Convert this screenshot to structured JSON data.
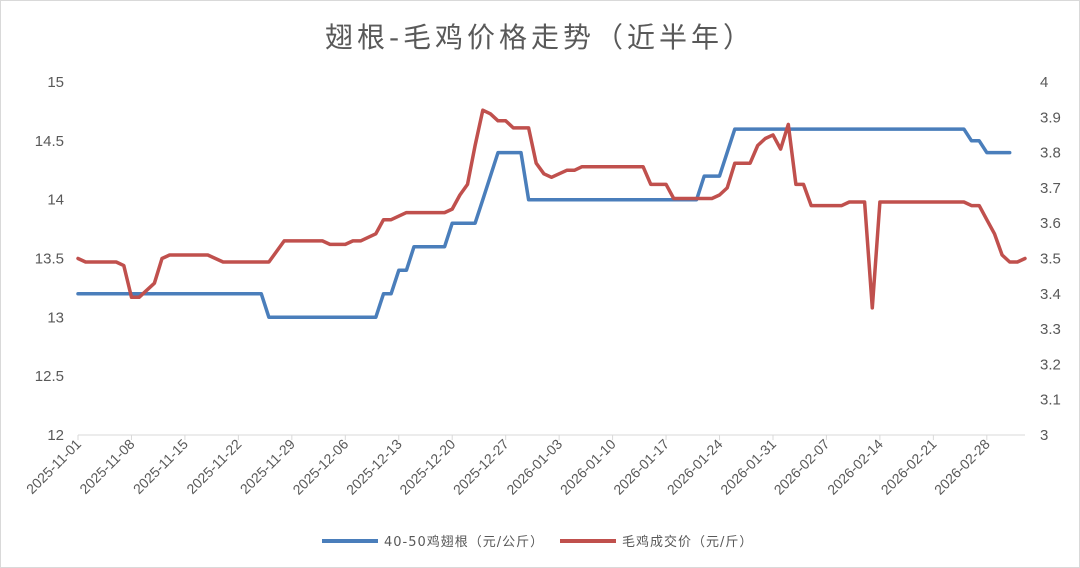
{
  "chart_data": {
    "type": "line",
    "title": "翅根-毛鸡价格走势（近半年）",
    "x_tick_labels": [
      "2025-11-01",
      "2025-11-08",
      "2025-11-15",
      "2025-11-22",
      "2025-11-29",
      "2025-12-06",
      "2025-12-13",
      "2025-12-20",
      "2025-12-27",
      "2026-01-03",
      "2026-01-10",
      "2026-01-17",
      "2026-01-24",
      "2026-01-31",
      "2026-02-07",
      "2026-02-14",
      "2026-02-21",
      "2026-02-28"
    ],
    "y_left": {
      "ylim": [
        12,
        15
      ],
      "ticks": [
        "12",
        "12.5",
        "13",
        "13.5",
        "14",
        "14.5",
        "15"
      ]
    },
    "y_right": {
      "ylim": [
        3,
        4
      ],
      "ticks": [
        "3",
        "3.1",
        "3.2",
        "3.3",
        "3.4",
        "3.5",
        "3.6",
        "3.7",
        "3.8",
        "3.9",
        "4"
      ]
    },
    "legend_position": "bottom",
    "grid": false,
    "series": [
      {
        "name": "40-50鸡翅根（元/公斤）",
        "axis": "left",
        "color": "#4a7ebb",
        "points": [
          [
            "2025-11-01",
            13.2
          ],
          [
            "2025-11-25",
            13.2
          ],
          [
            "2025-11-26",
            13.0
          ],
          [
            "2025-12-10",
            13.0
          ],
          [
            "2025-12-11",
            13.2
          ],
          [
            "2025-12-12",
            13.2
          ],
          [
            "2025-12-13",
            13.4
          ],
          [
            "2025-12-14",
            13.4
          ],
          [
            "2025-12-15",
            13.6
          ],
          [
            "2025-12-19",
            13.6
          ],
          [
            "2025-12-20",
            13.8
          ],
          [
            "2025-12-23",
            13.8
          ],
          [
            "2025-12-24",
            14.0
          ],
          [
            "2025-12-26",
            14.4
          ],
          [
            "2025-12-29",
            14.4
          ],
          [
            "2025-12-30",
            14.0
          ],
          [
            "2026-01-21",
            14.0
          ],
          [
            "2026-01-22",
            14.2
          ],
          [
            "2026-01-24",
            14.2
          ],
          [
            "2026-01-26",
            14.6
          ],
          [
            "2026-02-25",
            14.6
          ],
          [
            "2026-02-26",
            14.5
          ],
          [
            "2026-02-27",
            14.5
          ],
          [
            "2026-02-28",
            14.4
          ],
          [
            "2026-03-03",
            14.4
          ]
        ]
      },
      {
        "name": "毛鸡成交价（元/斤）",
        "axis": "right",
        "color": "#c0504d",
        "points": [
          [
            "2025-11-01",
            3.5
          ],
          [
            "2025-11-02",
            3.49
          ],
          [
            "2025-11-06",
            3.49
          ],
          [
            "2025-11-07",
            3.48
          ],
          [
            "2025-11-08",
            3.39
          ],
          [
            "2025-11-09",
            3.39
          ],
          [
            "2025-11-11",
            3.43
          ],
          [
            "2025-11-12",
            3.5
          ],
          [
            "2025-11-13",
            3.51
          ],
          [
            "2025-11-18",
            3.51
          ],
          [
            "2025-11-20",
            3.49
          ],
          [
            "2025-11-26",
            3.49
          ],
          [
            "2025-11-27",
            3.52
          ],
          [
            "2025-11-28",
            3.55
          ],
          [
            "2025-12-03",
            3.55
          ],
          [
            "2025-12-04",
            3.54
          ],
          [
            "2025-12-06",
            3.54
          ],
          [
            "2025-12-07",
            3.55
          ],
          [
            "2025-12-08",
            3.55
          ],
          [
            "2025-12-10",
            3.57
          ],
          [
            "2025-12-11",
            3.61
          ],
          [
            "2025-12-12",
            3.61
          ],
          [
            "2025-12-14",
            3.63
          ],
          [
            "2025-12-19",
            3.63
          ],
          [
            "2025-12-20",
            3.64
          ],
          [
            "2025-12-21",
            3.68
          ],
          [
            "2025-12-22",
            3.71
          ],
          [
            "2025-12-23",
            3.82
          ],
          [
            "2025-12-24",
            3.92
          ],
          [
            "2025-12-25",
            3.91
          ],
          [
            "2025-12-26",
            3.89
          ],
          [
            "2025-12-27",
            3.89
          ],
          [
            "2025-12-28",
            3.87
          ],
          [
            "2025-12-30",
            3.87
          ],
          [
            "2025-12-31",
            3.77
          ],
          [
            "2026-01-01",
            3.74
          ],
          [
            "2026-01-02",
            3.73
          ],
          [
            "2026-01-03",
            3.74
          ],
          [
            "2026-01-04",
            3.75
          ],
          [
            "2026-01-05",
            3.75
          ],
          [
            "2026-01-06",
            3.76
          ],
          [
            "2026-01-14",
            3.76
          ],
          [
            "2026-01-15",
            3.71
          ],
          [
            "2026-01-17",
            3.71
          ],
          [
            "2026-01-18",
            3.67
          ],
          [
            "2026-01-23",
            3.67
          ],
          [
            "2026-01-24",
            3.68
          ],
          [
            "2026-01-25",
            3.7
          ],
          [
            "2026-01-26",
            3.77
          ],
          [
            "2026-01-28",
            3.77
          ],
          [
            "2026-01-29",
            3.82
          ],
          [
            "2026-01-30",
            3.84
          ],
          [
            "2026-01-31",
            3.85
          ],
          [
            "2026-02-01",
            3.81
          ],
          [
            "2026-02-02",
            3.88
          ],
          [
            "2026-02-03",
            3.71
          ],
          [
            "2026-02-04",
            3.71
          ],
          [
            "2026-02-05",
            3.65
          ],
          [
            "2026-02-09",
            3.65
          ],
          [
            "2026-02-10",
            3.66
          ],
          [
            "2026-02-12",
            3.66
          ],
          [
            "2026-02-13",
            3.36
          ],
          [
            "2026-02-14",
            3.66
          ],
          [
            "2026-02-25",
            3.66
          ],
          [
            "2026-02-26",
            3.65
          ],
          [
            "2026-02-27",
            3.65
          ],
          [
            "2026-02-28",
            3.61
          ],
          [
            "2026-03-01",
            3.57
          ],
          [
            "2026-03-02",
            3.51
          ],
          [
            "2026-03-03",
            3.49
          ],
          [
            "2026-03-04",
            3.49
          ],
          [
            "2026-03-05",
            3.5
          ]
        ]
      }
    ]
  }
}
